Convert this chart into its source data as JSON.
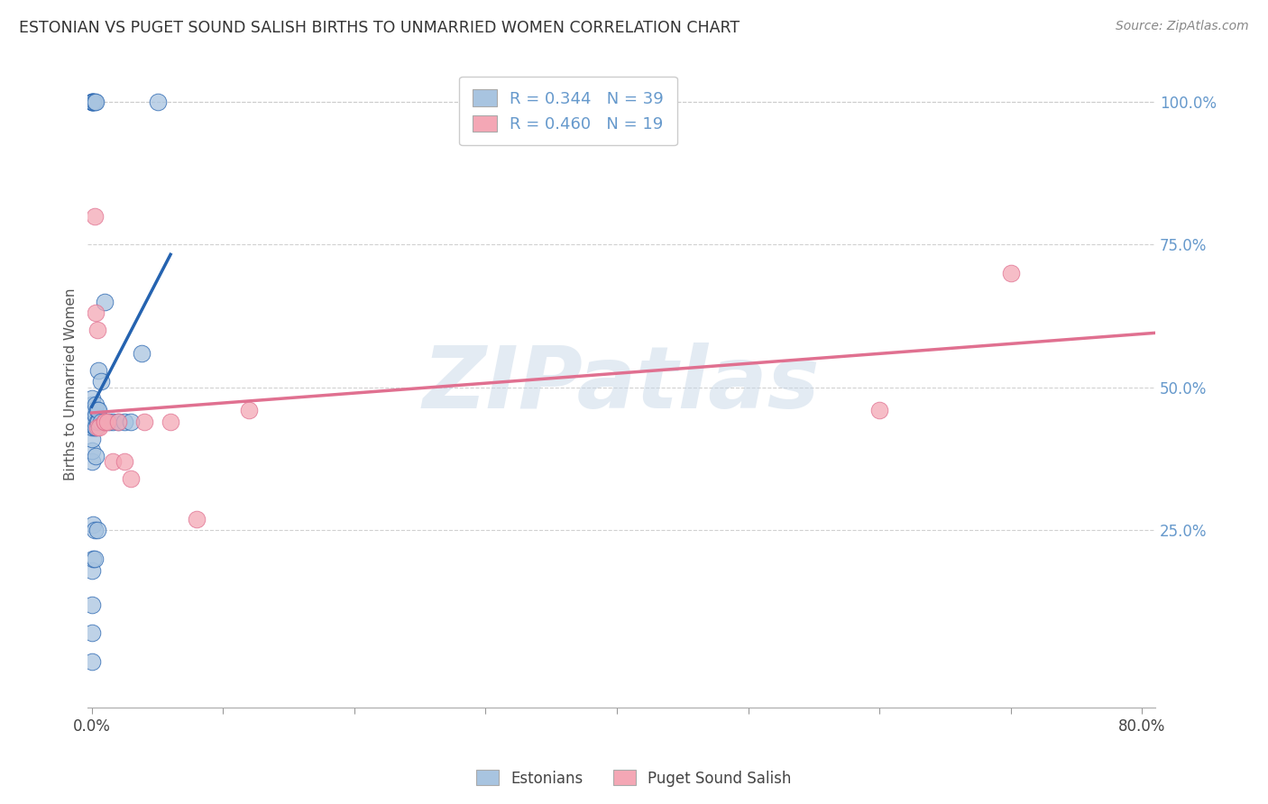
{
  "title": "ESTONIAN VS PUGET SOUND SALISH BIRTHS TO UNMARRIED WOMEN CORRELATION CHART",
  "source": "Source: ZipAtlas.com",
  "ylabel": "Births to Unmarried Women",
  "yticks_labels": [
    "100.0%",
    "75.0%",
    "50.0%",
    "25.0%"
  ],
  "ytick_vals": [
    1.0,
    0.75,
    0.5,
    0.25
  ],
  "xmin": -0.003,
  "xmax": 0.81,
  "ymin": -0.06,
  "ymax": 1.07,
  "watermark": "ZIPatlas",
  "legend_r_entries": [
    {
      "label": "R = 0.344   N = 39"
    },
    {
      "label": "R = 0.460   N = 19"
    }
  ],
  "estonians_x": [
    0.0,
    0.0,
    0.0,
    0.0,
    0.0,
    0.0,
    0.0,
    0.0,
    0.0,
    0.002,
    0.002,
    0.002,
    0.003,
    0.003,
    0.003,
    0.003,
    0.004,
    0.004,
    0.005,
    0.005,
    0.005,
    0.007,
    0.007,
    0.01,
    0.01,
    0.013,
    0.016,
    0.02,
    0.025,
    0.03,
    0.038,
    0.05
  ],
  "estonians_y": [
    0.37,
    0.39,
    0.41,
    0.43,
    0.44,
    0.45,
    0.46,
    0.47,
    0.48,
    0.43,
    0.44,
    0.46,
    0.38,
    0.43,
    0.45,
    0.47,
    0.44,
    0.46,
    0.44,
    0.46,
    0.53,
    0.44,
    0.51,
    0.44,
    0.65,
    0.44,
    0.44,
    0.44,
    0.44,
    0.44,
    0.56,
    1.0
  ],
  "estonians_top_x": [
    0.0,
    0.0,
    0.0,
    0.001,
    0.001,
    0.002,
    0.003
  ],
  "estonians_top_y": [
    1.0,
    1.0,
    1.0,
    1.0,
    1.0,
    1.0,
    1.0
  ],
  "estonians_low_x": [
    0.0,
    0.0,
    0.0,
    0.0,
    0.001,
    0.001,
    0.002,
    0.002,
    0.004
  ],
  "estonians_low_y": [
    0.02,
    0.07,
    0.12,
    0.18,
    0.2,
    0.26,
    0.2,
    0.25,
    0.25
  ],
  "puget_x": [
    0.002,
    0.003,
    0.004,
    0.004,
    0.006,
    0.01,
    0.01,
    0.012,
    0.016,
    0.02,
    0.025,
    0.03,
    0.04,
    0.06,
    0.08,
    0.12,
    0.6,
    0.7
  ],
  "puget_y": [
    0.8,
    0.63,
    0.43,
    0.6,
    0.43,
    0.44,
    0.44,
    0.44,
    0.37,
    0.44,
    0.37,
    0.34,
    0.44,
    0.44,
    0.27,
    0.46,
    0.46,
    0.7
  ],
  "blue_line_color": "#2563b0",
  "pink_line_color": "#e07090",
  "blue_scatter_color": "#a8c4e0",
  "pink_scatter_color": "#f4a7b5",
  "background_color": "#ffffff",
  "grid_color": "#cccccc",
  "title_color": "#333333",
  "right_axis_color": "#6699cc",
  "watermark_color": "#c8d8e8",
  "xtick_positions": [
    0.0,
    0.1,
    0.2,
    0.3,
    0.4,
    0.5,
    0.6,
    0.7,
    0.8
  ]
}
